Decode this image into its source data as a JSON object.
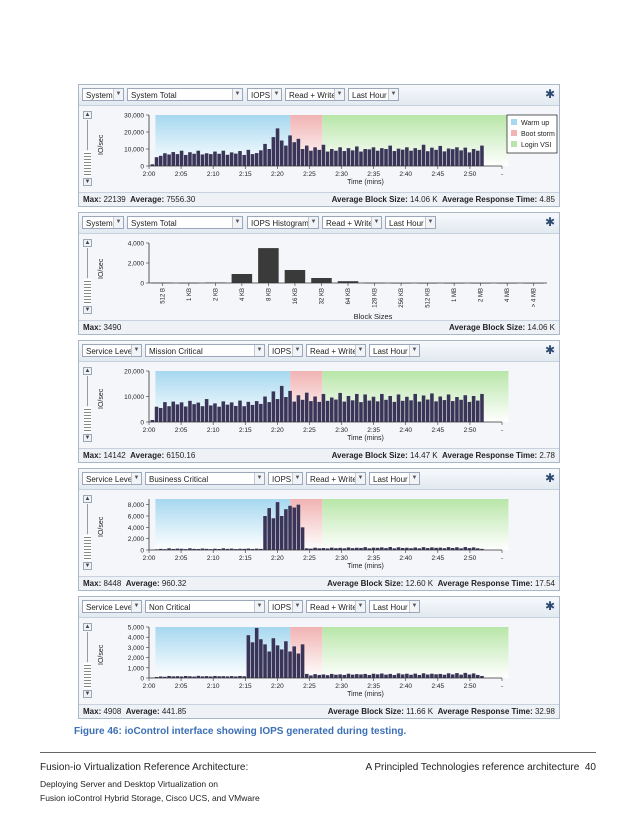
{
  "panels": [
    {
      "controls": [
        "System",
        "System Total",
        "IOPS",
        "Read + Write",
        "Last Hour"
      ],
      "ylabel": "IO/sec",
      "chart_data": {
        "type": "bar",
        "yticks": [
          "30,000",
          "20,000",
          "10,000",
          "0"
        ],
        "ylim": [
          0,
          30000
        ],
        "xticks": [
          "2:00",
          "2:05",
          "2:10",
          "2:15",
          "2:20",
          "2:25",
          "2:30",
          "2:35",
          "2:40",
          "2:45",
          "2:50",
          "-"
        ],
        "xlabel": "Time (mins)",
        "phases": [
          {
            "name": "Warm up",
            "from": 1,
            "to": 22,
            "color": "#a6d8f0"
          },
          {
            "name": "Boot storm",
            "from": 22,
            "to": 27,
            "color": "#f1b3b3"
          },
          {
            "name": "Login VSI",
            "from": 27,
            "to": 56,
            "color": "#b8e6a8"
          }
        ],
        "legend": [
          "Warm up",
          "Boot storm",
          "Login VSI"
        ],
        "values": [
          1000,
          5200,
          6000,
          7500,
          6800,
          8200,
          7000,
          9000,
          6500,
          8100,
          7200,
          9000,
          6800,
          7500,
          7000,
          8500,
          7200,
          9000,
          6600,
          8000,
          7300,
          8800,
          6500,
          9500,
          7000,
          7600,
          9200,
          13000,
          10000,
          17000,
          22139,
          15000,
          12000,
          18000,
          14000,
          16000,
          10000,
          12000,
          9000,
          11000,
          9500,
          12500,
          8500,
          10000,
          9000,
          11000,
          8800,
          10500,
          9200,
          11500,
          8500,
          10000,
          9800,
          11000,
          9000,
          10500,
          10000,
          12000,
          8800,
          10200,
          9600,
          11000,
          9000,
          10500,
          9500,
          12500,
          8700,
          10800,
          9500,
          11800,
          8600,
          10300,
          9900,
          11000,
          9200,
          10800,
          8000,
          10000,
          9000,
          12000
        ]
      },
      "footer_left": [
        {
          "k": "Max:",
          "v": "22139"
        },
        {
          "k": "Average:",
          "v": "7556.30"
        }
      ],
      "footer_right": [
        {
          "k": "Average Block Size:",
          "v": "14.06 K"
        },
        {
          "k": "Average Response Time:",
          "v": "4.85"
        }
      ]
    },
    {
      "controls": [
        "System",
        "System Total",
        "IOPS Histogram",
        "Read + Write",
        "Last Hour"
      ],
      "ylabel": "IO/sec",
      "chart_data": {
        "type": "bar",
        "yticks": [
          "4,000",
          "2,000",
          "0"
        ],
        "ylim": [
          0,
          4000
        ],
        "categories": [
          "512 B",
          "1 KB",
          "2 KB",
          "4 KB",
          "8 KB",
          "16 KB",
          "32 KB",
          "64 KB",
          "128 KB",
          "256 KB",
          "512 KB",
          "1 MB",
          "2 MB",
          "4 MB",
          "> 4 MB"
        ],
        "values": [
          30,
          20,
          50,
          900,
          3490,
          1300,
          500,
          180,
          20,
          0,
          0,
          0,
          0,
          0,
          0
        ],
        "xlabel": "Block Sizes"
      },
      "footer_left": [
        {
          "k": "Max:",
          "v": "3490"
        }
      ],
      "footer_right": [
        {
          "k": "Average Block Size:",
          "v": "14.06 K"
        }
      ]
    },
    {
      "controls": [
        "Service Level",
        "Mission Critical",
        "IOPS",
        "Read + Write",
        "Last Hour"
      ],
      "ylabel": "IO/sec",
      "chart_data": {
        "type": "bar",
        "yticks": [
          "20,000",
          "10,000",
          "0"
        ],
        "ylim": [
          0,
          20000
        ],
        "xticks": [
          "2:00",
          "2:05",
          "2:10",
          "2:15",
          "2:20",
          "2:25",
          "2:30",
          "2:35",
          "2:40",
          "2:45",
          "2:50",
          "-"
        ],
        "xlabel": "Time (mins)",
        "phases": [
          {
            "name": "Warm up",
            "from": 1,
            "to": 22,
            "color": "#a6d8f0"
          },
          {
            "name": "Boot storm",
            "from": 22,
            "to": 27,
            "color": "#f1b3b3"
          },
          {
            "name": "Login VSI",
            "from": 27,
            "to": 56,
            "color": "#b8e6a8"
          }
        ],
        "values": [
          800,
          6000,
          5500,
          7800,
          6200,
          8000,
          6900,
          7700,
          6100,
          8300,
          7000,
          7600,
          6200,
          9000,
          6500,
          7300,
          6000,
          8100,
          6800,
          7700,
          6300,
          8400,
          6200,
          7900,
          6700,
          8200,
          7100,
          10000,
          7800,
          12000,
          9000,
          14142,
          9800,
          12200,
          8000,
          10500,
          8700,
          11500,
          8200,
          10000,
          7900,
          11000,
          8300,
          9600,
          8800,
          11400,
          8000,
          10200,
          8500,
          11000,
          7800,
          10800,
          8400,
          9900,
          8100,
          11000,
          8700,
          10200,
          7900,
          10800,
          8300,
          9900,
          8500,
          11000,
          8000,
          10400,
          8800,
          11200,
          8100,
          10000,
          8600,
          10800,
          8200,
          9800,
          8700,
          10500,
          7900,
          10200,
          8400,
          11000
        ]
      },
      "footer_left": [
        {
          "k": "Max:",
          "v": "14142"
        },
        {
          "k": "Average:",
          "v": "6150.16"
        }
      ],
      "footer_right": [
        {
          "k": "Average Block Size:",
          "v": "14.47 K"
        },
        {
          "k": "Average Response Time:",
          "v": "2.78"
        }
      ]
    },
    {
      "controls": [
        "Service Level",
        "Business Critical",
        "IOPS",
        "Read + Write",
        "Last Hour"
      ],
      "ylabel": "IO/sec",
      "chart_data": {
        "type": "bar",
        "yticks": [
          "8,000",
          "6,000",
          "4,000",
          "2,000",
          "0"
        ],
        "ylim": [
          0,
          9000
        ],
        "xticks": [
          "2:00",
          "2:05",
          "2:10",
          "2:15",
          "2:20",
          "2:25",
          "2:30",
          "2:35",
          "2:40",
          "2:45",
          "2:50",
          "-"
        ],
        "xlabel": "Time (mins)",
        "phases": [
          {
            "name": "Warm up",
            "from": 1,
            "to": 22,
            "color": "#a6d8f0"
          },
          {
            "name": "Boot storm",
            "from": 22,
            "to": 27,
            "color": "#f1b3b3"
          },
          {
            "name": "Login VSI",
            "from": 27,
            "to": 56,
            "color": "#b8e6a8"
          }
        ],
        "values": [
          50,
          120,
          200,
          150,
          300,
          180,
          250,
          220,
          160,
          300,
          200,
          180,
          260,
          200,
          150,
          230,
          180,
          300,
          200,
          250,
          170,
          220,
          200,
          260,
          180,
          240,
          200,
          6000,
          7400,
          5600,
          8448,
          6000,
          7200,
          7800,
          7500,
          8000,
          4000,
          300,
          250,
          400,
          300,
          350,
          280,
          420,
          320,
          380,
          300,
          450,
          330,
          400,
          360,
          500,
          300,
          420,
          380,
          460,
          340,
          520,
          300,
          480,
          360,
          400,
          320,
          440,
          300,
          500,
          340,
          460,
          380,
          420,
          320,
          500,
          360,
          480,
          300,
          520,
          340,
          460,
          300,
          200
        ]
      },
      "footer_left": [
        {
          "k": "Max:",
          "v": "8448"
        },
        {
          "k": "Average:",
          "v": "960.32"
        }
      ],
      "footer_right": [
        {
          "k": "Average Block Size:",
          "v": "12.60 K"
        },
        {
          "k": "Average Response Time:",
          "v": "17.54"
        }
      ]
    },
    {
      "controls": [
        "Service Level",
        "Non Critical",
        "IOPS",
        "Read + Write",
        "Last Hour"
      ],
      "ylabel": "IO/sec",
      "chart_data": {
        "type": "bar",
        "yticks": [
          "5,000",
          "4,000",
          "3,000",
          "2,000",
          "1,000",
          "0"
        ],
        "ylim": [
          0,
          5000
        ],
        "xticks": [
          "2:00",
          "2:05",
          "2:10",
          "2:15",
          "2:20",
          "2:25",
          "2:30",
          "2:35",
          "2:40",
          "2:45",
          "2:50",
          "-"
        ],
        "xlabel": "Time (mins)",
        "phases": [
          {
            "name": "Warm up",
            "from": 1,
            "to": 22,
            "color": "#a6d8f0"
          },
          {
            "name": "Boot storm",
            "from": 22,
            "to": 27,
            "color": "#f1b3b3"
          },
          {
            "name": "Login VSI",
            "from": 27,
            "to": 56,
            "color": "#b8e6a8"
          }
        ],
        "values": [
          30,
          100,
          150,
          120,
          200,
          160,
          180,
          150,
          200,
          170,
          140,
          210,
          160,
          190,
          150,
          200,
          170,
          180,
          160,
          190,
          150,
          200,
          170,
          4200,
          3500,
          4908,
          3800,
          3300,
          2600,
          3900,
          3200,
          2800,
          3600,
          2600,
          3100,
          2400,
          3300,
          400,
          250,
          380,
          300,
          350,
          280,
          400,
          320,
          360,
          300,
          420,
          330,
          380,
          350,
          400,
          300,
          420,
          360,
          440,
          330,
          400,
          300,
          450,
          350,
          420,
          320,
          430,
          300,
          460,
          340,
          420,
          360,
          400,
          320,
          460,
          350,
          480,
          330,
          500,
          340,
          450,
          300,
          200
        ]
      },
      "footer_left": [
        {
          "k": "Max:",
          "v": "4908"
        },
        {
          "k": "Average:",
          "v": "441.85"
        }
      ],
      "footer_right": [
        {
          "k": "Average Block Size:",
          "v": "11.66 K"
        },
        {
          "k": "Average Response Time:",
          "v": "32.98"
        }
      ]
    }
  ],
  "caption": "Figure 46: ioControl interface showing IOPS generated during testing.",
  "page_footer": {
    "line1": "Fusion-io Virtualization Reference Architecture:",
    "line2": "Deploying Server and Desktop Virtualization on",
    "line3": "Fusion ioControl Hybrid Storage, Cisco UCS, and VMware",
    "right": "A Principled Technologies reference architecture",
    "page": "40"
  },
  "colors": {
    "bar": "#3a3558",
    "axis": "#333333",
    "border": "#a9b7c9"
  }
}
